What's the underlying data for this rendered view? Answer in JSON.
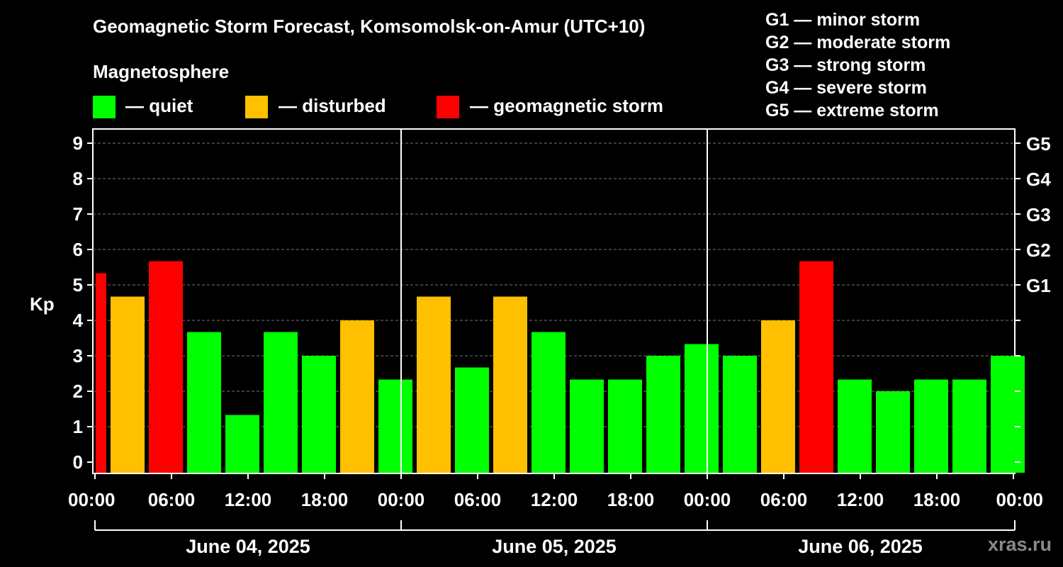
{
  "title": "Geomagnetic Storm Forecast, Komsomolsk-on-Amur (UTC+10)",
  "magnetosphere_label": "Magnetosphere",
  "legend": [
    {
      "label": "— quiet",
      "color": "#00ff00"
    },
    {
      "label": "— disturbed",
      "color": "#ffc000"
    },
    {
      "label": "— geomagnetic storm",
      "color": "#ff0000"
    }
  ],
  "g_scale_legend": [
    "G1 — minor storm",
    "G2 — moderate storm",
    "G3 — strong storm",
    "G4 — severe storm",
    "G5 — extreme storm"
  ],
  "watermark": "xras.ru",
  "chart_data": {
    "type": "bar",
    "ylabel": "Kp",
    "ylim": [
      0,
      9
    ],
    "yticks": [
      "0",
      "1",
      "2",
      "3",
      "4",
      "5",
      "6",
      "7",
      "8",
      "9"
    ],
    "right_axis_labels": [
      {
        "kp": 5,
        "label": "G1"
      },
      {
        "kp": 6,
        "label": "G2"
      },
      {
        "kp": 7,
        "label": "G3"
      },
      {
        "kp": 8,
        "label": "G4"
      },
      {
        "kp": 9,
        "label": "G5"
      }
    ],
    "x_tick_labels": [
      "00:00",
      "06:00",
      "12:00",
      "18:00",
      "00:00",
      "06:00",
      "12:00",
      "18:00",
      "00:00",
      "06:00",
      "12:00",
      "18:00",
      "00:00"
    ],
    "days": [
      "June 04, 2025",
      "June 05, 2025",
      "June 06, 2025"
    ],
    "interval_hours": 3,
    "partial_first_bar": {
      "label": "00:00",
      "value": 5.33,
      "status": "storm"
    },
    "bars": [
      {
        "value": 4.67,
        "status": "disturbed"
      },
      {
        "value": 5.67,
        "status": "storm"
      },
      {
        "value": 3.67,
        "status": "quiet"
      },
      {
        "value": 1.33,
        "status": "quiet"
      },
      {
        "value": 3.67,
        "status": "quiet"
      },
      {
        "value": 3.0,
        "status": "quiet"
      },
      {
        "value": 4.0,
        "status": "disturbed"
      },
      {
        "value": 2.33,
        "status": "quiet"
      },
      {
        "value": 4.67,
        "status": "disturbed"
      },
      {
        "value": 2.67,
        "status": "quiet"
      },
      {
        "value": 4.67,
        "status": "disturbed"
      },
      {
        "value": 3.67,
        "status": "quiet"
      },
      {
        "value": 2.33,
        "status": "quiet"
      },
      {
        "value": 2.33,
        "status": "quiet"
      },
      {
        "value": 3.0,
        "status": "quiet"
      },
      {
        "value": 3.33,
        "status": "quiet"
      },
      {
        "value": 3.0,
        "status": "quiet"
      },
      {
        "value": 4.0,
        "status": "disturbed"
      },
      {
        "value": 5.67,
        "status": "storm"
      },
      {
        "value": 2.33,
        "status": "quiet"
      },
      {
        "value": 2.0,
        "status": "quiet"
      },
      {
        "value": 2.33,
        "status": "quiet"
      },
      {
        "value": 2.33,
        "status": "quiet"
      },
      {
        "value": 3.0,
        "status": "quiet"
      }
    ],
    "status_colors": {
      "quiet": "#00ff00",
      "disturbed": "#ffc000",
      "storm": "#ff0000"
    }
  }
}
